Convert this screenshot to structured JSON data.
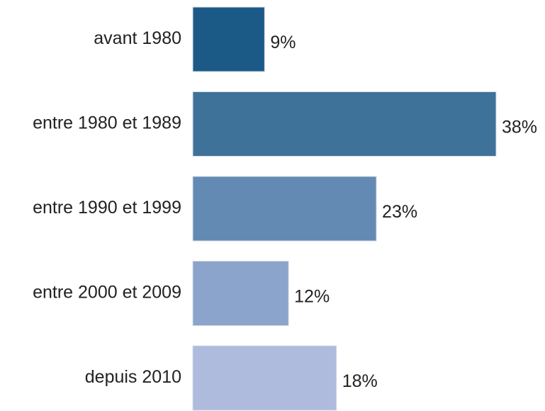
{
  "chart_data": {
    "type": "barh",
    "categories": [
      "avant 1980",
      "entre 1980 et 1989",
      "entre 1990 et 1999",
      "entre 2000 et 2009",
      "depuis 2010"
    ],
    "values": [
      9,
      38,
      23,
      12,
      18
    ],
    "value_labels": [
      "9%",
      "38%",
      "23%",
      "12%",
      "18%"
    ],
    "colors": [
      "#1b5a87",
      "#3e7299",
      "#628ab3",
      "#8ba4cb",
      "#aebbdd"
    ]
  }
}
